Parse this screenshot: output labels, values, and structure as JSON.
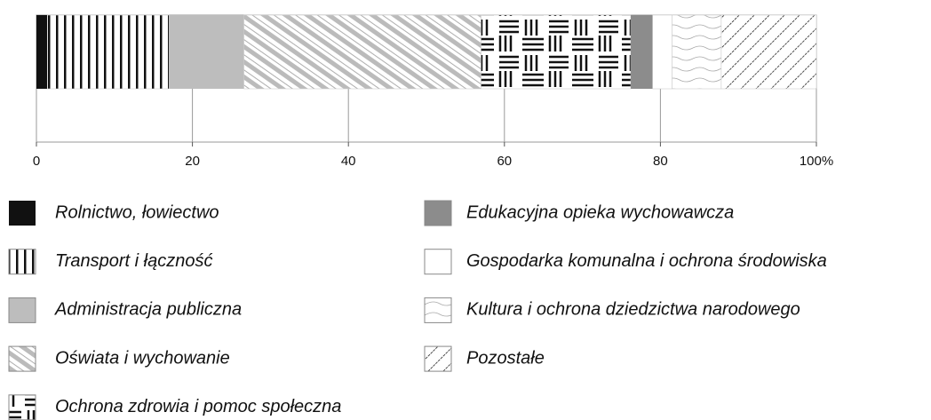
{
  "chart_data": {
    "type": "stacked-bar-horizontal",
    "series": [
      {
        "name": "Rolnictwo, łowiectwo",
        "color": "#111111",
        "values": [
          1.4
        ]
      },
      {
        "name": "Transport i łączność",
        "color": "#ffffff",
        "values": [
          15.6
        ]
      },
      {
        "name": "Administracja publiczna",
        "color": "#bdbdbd",
        "values": [
          9.6
        ]
      },
      {
        "name": "Oświata i wychowanie",
        "color": "#ffffff",
        "values": [
          30.4
        ]
      },
      {
        "name": "Ochrona zdrowia i pomoc społeczna",
        "color": "#ffffff",
        "values": [
          19.2
        ]
      },
      {
        "name": "Edukacyjna opieka wychowawcza",
        "color": "#8c8c8c",
        "values": [
          2.8
        ]
      },
      {
        "name": "Gospodarka komunalna i ochrona środowiska",
        "color": "#ffffff",
        "values": [
          2.5
        ]
      },
      {
        "name": "Kultura i ochrona dziedzictwa narodowego",
        "color": "#ffffff",
        "values": [
          6.3
        ]
      },
      {
        "name": "Pozostałe",
        "color": "#ffffff",
        "values": [
          12.2
        ]
      }
    ],
    "xlim": [
      0,
      100
    ],
    "xticks": [
      0,
      20,
      40,
      60,
      80,
      {
        "value": 100,
        "label": "100%"
      }
    ],
    "grid": true
  }
}
